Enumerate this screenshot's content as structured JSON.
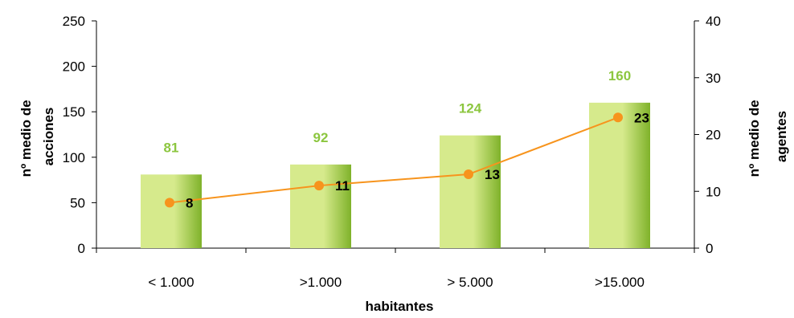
{
  "chart_data": {
    "type": "bar",
    "categories": [
      "< 1.000",
      ">1.000",
      "> 5.000",
      ">15.000"
    ],
    "series": [
      {
        "type": "bar",
        "axis": "left",
        "values": [
          81,
          92,
          124,
          160
        ]
      },
      {
        "type": "line",
        "axis": "right",
        "values": [
          8,
          11,
          13,
          23
        ]
      }
    ],
    "xlabel": "habitantes",
    "ylabel": "nº medio de acciones",
    "y2label_lines": [
      "nº medio de",
      "agentes"
    ],
    "ylabel_lines": [
      "nº medio de",
      "acciones"
    ],
    "ylim": [
      0,
      250
    ],
    "y2lim": [
      0,
      40
    ],
    "yticks": [
      0,
      50,
      100,
      150,
      200,
      250
    ],
    "y2ticks": [
      0,
      10,
      20,
      30,
      40
    ],
    "grid": false,
    "colors": {
      "bar_light": "#d6ea8c",
      "bar_dark": "#7fb22a",
      "bar_label": "#8cc63f",
      "line": "#f7941d",
      "marker": "#f7941d",
      "axis": "#000000"
    }
  }
}
